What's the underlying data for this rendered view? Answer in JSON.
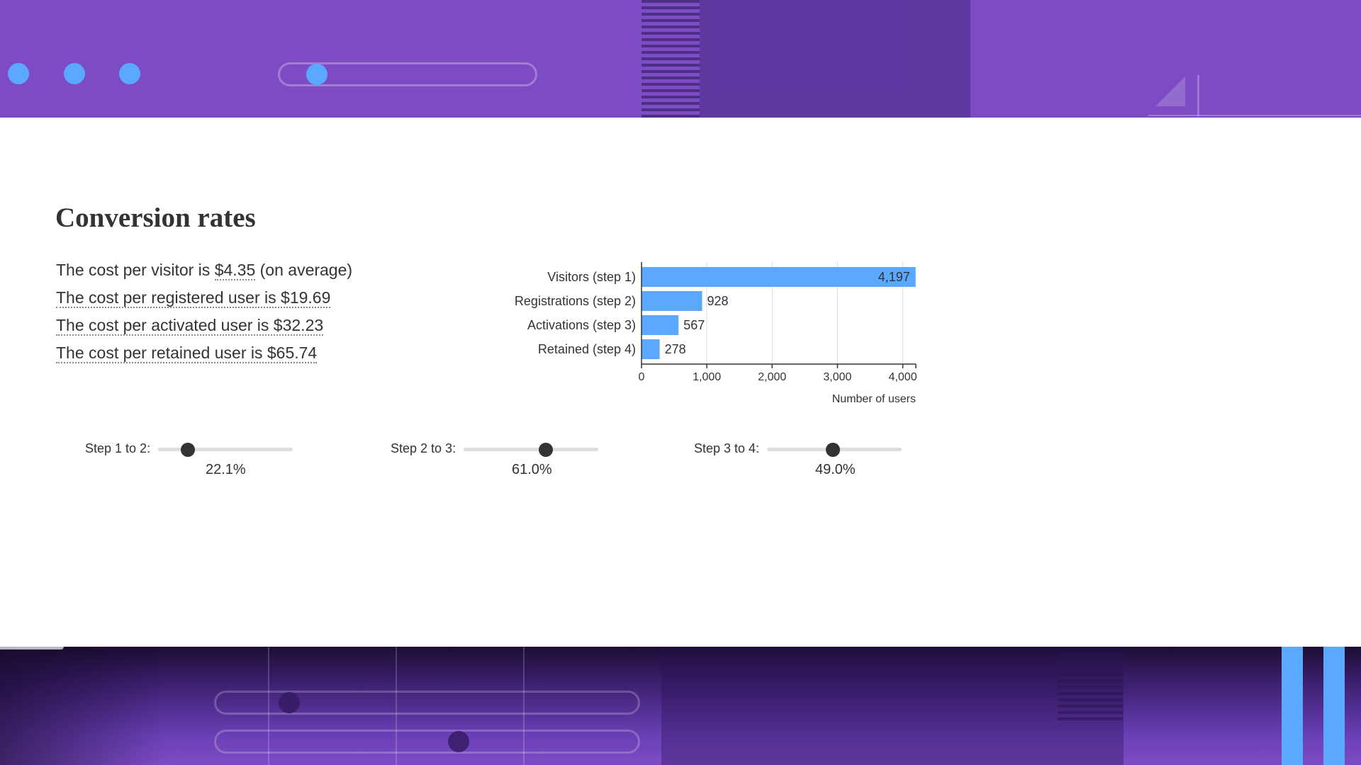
{
  "page": {
    "title": "Conversion rates"
  },
  "costs": [
    {
      "prefix": "The cost per visitor is ",
      "value": "$4.35",
      "suffix": " (on average)"
    },
    {
      "text": "The cost per registered user is $19.69"
    },
    {
      "text": "The cost per activated user is $32.23"
    },
    {
      "text": "The cost per retained user is $65.74"
    }
  ],
  "sliders": [
    {
      "label": "Step 1 to 2:",
      "value": "22.1%",
      "fraction": 0.221
    },
    {
      "label": "Step 2 to 3:",
      "value": "61.0%",
      "fraction": 0.61
    },
    {
      "label": "Step 3 to 4:",
      "value": "49.0%",
      "fraction": 0.49
    }
  ],
  "chart_data": {
    "type": "bar",
    "orientation": "horizontal",
    "categories": [
      "Visitors (step 1)",
      "Registrations (step 2)",
      "Activations (step 3)",
      "Retained (step 4)"
    ],
    "values": [
      4197,
      928,
      567,
      278
    ],
    "value_labels": [
      "4,197",
      "928",
      "567",
      "278"
    ],
    "xlabel": "Number of users",
    "xlim": [
      0,
      4200
    ],
    "xticks": [
      0,
      1000,
      2000,
      3000,
      4000
    ],
    "xtick_labels": [
      "0",
      "1,000",
      "2,000",
      "3,000",
      "4,000"
    ],
    "grid": true,
    "bar_color": "#5aa8ff"
  },
  "colors": {
    "band": "#7d4cc4",
    "accent": "#5aa8ff",
    "text": "#333333"
  }
}
